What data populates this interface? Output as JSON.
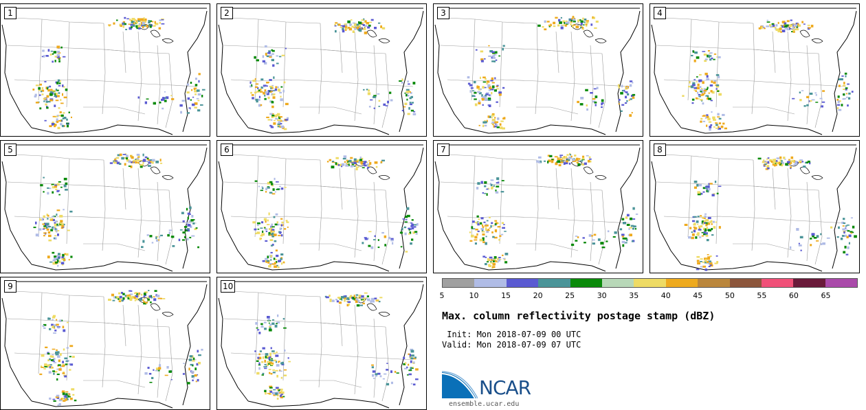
{
  "panels": [
    {
      "label": "1"
    },
    {
      "label": "2"
    },
    {
      "label": "3"
    },
    {
      "label": "4"
    },
    {
      "label": "5"
    },
    {
      "label": "6"
    },
    {
      "label": "7"
    },
    {
      "label": "8"
    },
    {
      "label": "9"
    },
    {
      "label": "10"
    }
  ],
  "legend": {
    "colors": [
      "#a0a0a0",
      "#b0bce6",
      "#5a5ad2",
      "#4a9498",
      "#0a8a0a",
      "#b8d8b8",
      "#eedb64",
      "#eeaa1e",
      "#ba863c",
      "#8c563c",
      "#f05078",
      "#6a1a3a",
      "#aa4aaa"
    ],
    "ticks": [
      "5",
      "10",
      "15",
      "20",
      "25",
      "30",
      "35",
      "40",
      "45",
      "50",
      "55",
      "60",
      "65"
    ]
  },
  "title": "Max. column reflectivity postage stamp (dBZ)",
  "init": " Init: Mon 2018-07-09 00 UTC",
  "valid": "Valid: Mon 2018-07-09 07 UTC",
  "logo": {
    "text": "NCAR",
    "site": "ensemble.ucar.edu"
  }
}
